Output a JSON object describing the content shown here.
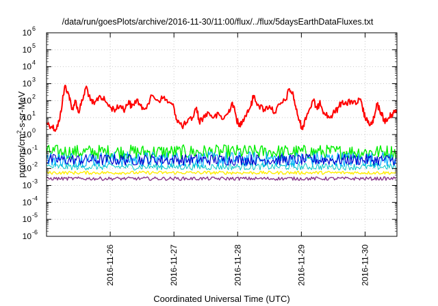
{
  "chart_data": {
    "type": "line",
    "title": "/data/run/goesPlots/archive/2016-11-30/11:00/flux/../flux/5daysEarthDataFluxes.txt",
    "xlabel": "Coordinated Universal Time (UTC)",
    "ylabel_parts": [
      "protons/cm",
      "2",
      "-s-sr-MeV"
    ],
    "yscale": "log",
    "ylim": [
      1e-06,
      1000000.0
    ],
    "y_ticks": [
      {
        "base": "10",
        "exp": "-6",
        "value": 1e-06
      },
      {
        "base": "10",
        "exp": "-5",
        "value": 1e-05
      },
      {
        "base": "10",
        "exp": "-4",
        "value": 0.0001
      },
      {
        "base": "10",
        "exp": "-3",
        "value": 0.001
      },
      {
        "base": "10",
        "exp": "-2",
        "value": 0.01
      },
      {
        "base": "10",
        "exp": "-1",
        "value": 0.1
      },
      {
        "base": "10",
        "exp": "0",
        "value": 1
      },
      {
        "base": "10",
        "exp": "1",
        "value": 10
      },
      {
        "base": "10",
        "exp": "2",
        "value": 100
      },
      {
        "base": "10",
        "exp": "3",
        "value": 1000
      },
      {
        "base": "10",
        "exp": "4",
        "value": 10000
      },
      {
        "base": "10",
        "exp": "5",
        "value": 100000
      },
      {
        "base": "10",
        "exp": "6",
        "value": 1000000
      }
    ],
    "xlim": [
      "2016-11-25T00:00",
      "2016-11-30T12:00"
    ],
    "x_ticks": [
      {
        "label": "2016-11-26",
        "x": "2016-11-26T00:00"
      },
      {
        "label": "2016-11-27",
        "x": "2016-11-27T00:00"
      },
      {
        "label": "2016-11-28",
        "x": "2016-11-28T00:00"
      },
      {
        "label": "2016-11-29",
        "x": "2016-11-29T00:00"
      },
      {
        "label": "2016-11-30",
        "x": "2016-11-30T00:00"
      }
    ],
    "grid": true,
    "legend": "none",
    "series": [
      {
        "color": "#ff0000",
        "width": 2,
        "points": [
          [
            "2016-11-25T00:00",
            5
          ],
          [
            "2016-11-25T02:00",
            3
          ],
          [
            "2016-11-25T03:30",
            2
          ],
          [
            "2016-11-25T05:00",
            8
          ],
          [
            "2016-11-25T06:00",
            100
          ],
          [
            "2016-11-25T07:00",
            800
          ],
          [
            "2016-11-25T08:30",
            200
          ],
          [
            "2016-11-25T09:30",
            30
          ],
          [
            "2016-11-25T11:00",
            100
          ],
          [
            "2016-11-25T12:00",
            20
          ],
          [
            "2016-11-25T13:30",
            100
          ],
          [
            "2016-11-25T15:00",
            700
          ],
          [
            "2016-11-25T16:30",
            100
          ],
          [
            "2016-11-25T18:00",
            60
          ],
          [
            "2016-11-25T20:00",
            200
          ],
          [
            "2016-11-25T22:00",
            100
          ],
          [
            "2016-11-26T00:00",
            40
          ],
          [
            "2016-11-26T02:00",
            30
          ],
          [
            "2016-11-26T04:00",
            50
          ],
          [
            "2016-11-26T05:30",
            30
          ],
          [
            "2016-11-26T07:00",
            100
          ],
          [
            "2016-11-26T08:00",
            40
          ],
          [
            "2016-11-26T10:00",
            120
          ],
          [
            "2016-11-26T12:00",
            30
          ],
          [
            "2016-11-26T14:00",
            60
          ],
          [
            "2016-11-26T16:00",
            200
          ],
          [
            "2016-11-26T18:00",
            100
          ],
          [
            "2016-11-26T20:00",
            150
          ],
          [
            "2016-11-26T22:00",
            80
          ],
          [
            "2016-11-27T00:00",
            40
          ],
          [
            "2016-11-27T01:00",
            8
          ],
          [
            "2016-11-27T03:00",
            3
          ],
          [
            "2016-11-27T05:00",
            5
          ],
          [
            "2016-11-27T07:00",
            10
          ],
          [
            "2016-11-27T08:30",
            40
          ],
          [
            "2016-11-27T09:30",
            6
          ],
          [
            "2016-11-27T11:00",
            10
          ],
          [
            "2016-11-27T13:00",
            20
          ],
          [
            "2016-11-27T15:00",
            10
          ],
          [
            "2016-11-27T17:00",
            15
          ],
          [
            "2016-11-27T18:30",
            8
          ],
          [
            "2016-11-27T20:30",
            20
          ],
          [
            "2016-11-27T22:00",
            80
          ],
          [
            "2016-11-27T23:30",
            10
          ],
          [
            "2016-11-28T00:30",
            3
          ],
          [
            "2016-11-28T02:00",
            8
          ],
          [
            "2016-11-28T03:30",
            20
          ],
          [
            "2016-11-28T05:00",
            50
          ],
          [
            "2016-11-28T06:00",
            200
          ],
          [
            "2016-11-28T08:00",
            50
          ],
          [
            "2016-11-28T10:00",
            30
          ],
          [
            "2016-11-28T12:00",
            50
          ],
          [
            "2016-11-28T14:00",
            20
          ],
          [
            "2016-11-28T16:00",
            60
          ],
          [
            "2016-11-28T18:00",
            100
          ],
          [
            "2016-11-28T19:30",
            500
          ],
          [
            "2016-11-28T21:00",
            200
          ],
          [
            "2016-11-28T22:00",
            30
          ],
          [
            "2016-11-28T23:30",
            5
          ],
          [
            "2016-11-29T00:30",
            2
          ],
          [
            "2016-11-29T01:30",
            10
          ],
          [
            "2016-11-29T03:00",
            30
          ],
          [
            "2016-11-29T04:30",
            100
          ],
          [
            "2016-11-29T06:00",
            30
          ],
          [
            "2016-11-29T07:00",
            100
          ],
          [
            "2016-11-29T08:30",
            20
          ],
          [
            "2016-11-29T10:30",
            10
          ],
          [
            "2016-11-29T12:30",
            20
          ],
          [
            "2016-11-29T14:00",
            40
          ],
          [
            "2016-11-29T15:30",
            100
          ],
          [
            "2016-11-29T17:00",
            60
          ],
          [
            "2016-11-29T19:00",
            100
          ],
          [
            "2016-11-29T20:30",
            60
          ],
          [
            "2016-11-29T22:00",
            120
          ],
          [
            "2016-11-29T23:00",
            40
          ],
          [
            "2016-11-30T00:00",
            10
          ],
          [
            "2016-11-30T01:00",
            5
          ],
          [
            "2016-11-30T02:30",
            4
          ],
          [
            "2016-11-30T03:30",
            10
          ],
          [
            "2016-11-30T04:30",
            60
          ],
          [
            "2016-11-30T06:00",
            20
          ],
          [
            "2016-11-30T07:00",
            8
          ],
          [
            "2016-11-30T08:00",
            6
          ],
          [
            "2016-11-30T09:00",
            10
          ],
          [
            "2016-11-30T10:00",
            15
          ],
          [
            "2016-11-30T11:00",
            20
          ],
          [
            "2016-11-30T12:00",
            30
          ]
        ]
      },
      {
        "color": "#00ee00",
        "width": 1.4,
        "band": [
          0.035,
          0.25
        ]
      },
      {
        "color": "#00aaff",
        "width": 1.2,
        "band": [
          0.012,
          0.1
        ]
      },
      {
        "color": "#0000cc",
        "width": 1.2,
        "band": [
          0.015,
          0.07
        ]
      },
      {
        "color": "#00c8c8",
        "width": 1.0,
        "band": [
          0.008,
          0.02
        ]
      },
      {
        "color": "#ffee00",
        "width": 1.4,
        "band": [
          0.0045,
          0.007
        ]
      },
      {
        "color": "#883388",
        "width": 1.4,
        "band": [
          0.002,
          0.0032
        ]
      }
    ]
  }
}
